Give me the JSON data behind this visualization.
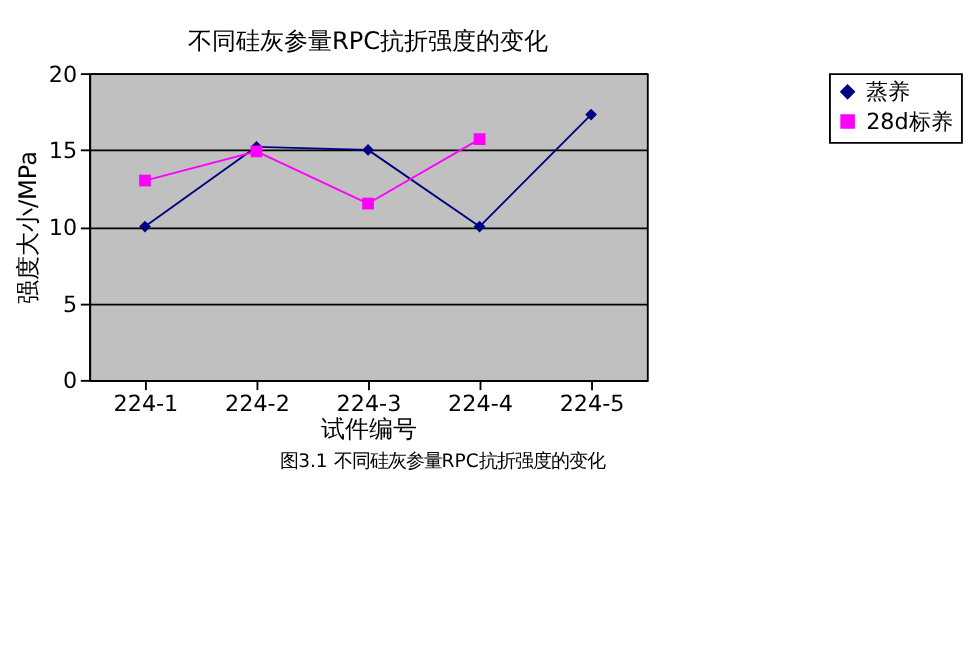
{
  "chart_data": {
    "type": "line",
    "title": "不同硅灰参量RPC抗折强度的变化",
    "xlabel": "试件编号",
    "ylabel": "强度大小/MPa",
    "categories": [
      "224-1",
      "224-2",
      "224-3",
      "224-4",
      "224-5"
    ],
    "series": [
      {
        "name": "蒸养",
        "color": "#000080",
        "marker": "diamond",
        "values": [
          10.0,
          15.2,
          15.0,
          10.0,
          17.3
        ]
      },
      {
        "name": "28d标养",
        "color": "#ff00ff",
        "marker": "square",
        "values": [
          13.0,
          14.9,
          11.5,
          15.7,
          null
        ]
      }
    ],
    "ylim": [
      0,
      20
    ],
    "yticks": [
      0,
      5,
      10,
      15,
      20
    ],
    "grid": "y",
    "legend": "right",
    "line_style": "solid",
    "annotations": [
      "图3.1   不同硅灰参量RPC抗折强度的变化"
    ]
  }
}
